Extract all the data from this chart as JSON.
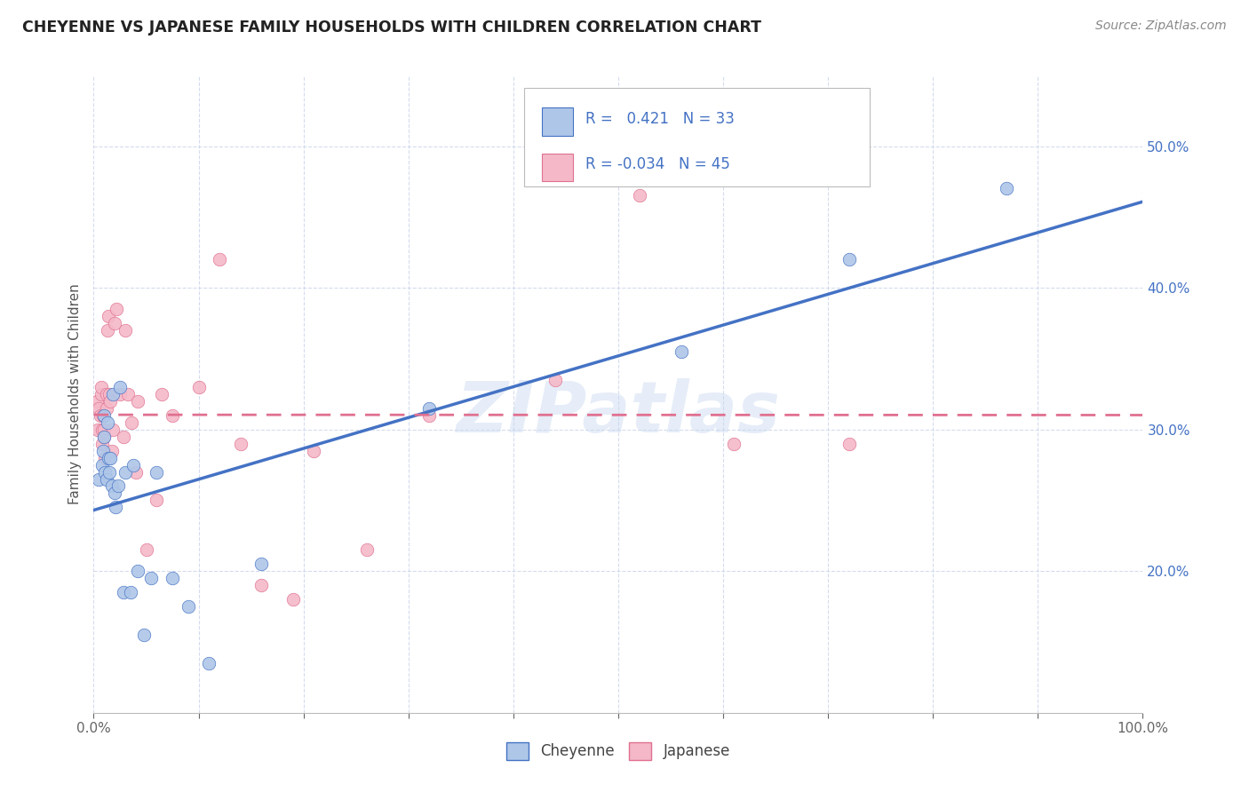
{
  "title": "CHEYENNE VS JAPANESE FAMILY HOUSEHOLDS WITH CHILDREN CORRELATION CHART",
  "source": "Source: ZipAtlas.com",
  "ylabel": "Family Households with Children",
  "watermark": "ZIPatlas",
  "cheyenne_color": "#aec6e8",
  "japanese_color": "#f4b8c8",
  "cheyenne_line_color": "#4472c4",
  "japanese_line_color": "#e07090",
  "background_color": "#ffffff",
  "grid_color": "#d0d8ec",
  "xlim": [
    0.0,
    1.0
  ],
  "ylim": [
    0.1,
    0.55
  ],
  "x_ticks_shown": [
    0.0,
    1.0
  ],
  "x_ticks_all": [
    0.0,
    0.1,
    0.2,
    0.3,
    0.4,
    0.5,
    0.6,
    0.7,
    0.8,
    0.9,
    1.0
  ],
  "y_ticks": [
    0.2,
    0.3,
    0.4,
    0.5
  ],
  "cheyenne_x": [
    0.005,
    0.008,
    0.009,
    0.01,
    0.01,
    0.011,
    0.012,
    0.013,
    0.014,
    0.015,
    0.016,
    0.017,
    0.018,
    0.02,
    0.021,
    0.023,
    0.025,
    0.028,
    0.03,
    0.035,
    0.038,
    0.042,
    0.048,
    0.055,
    0.06,
    0.075,
    0.09,
    0.11,
    0.16,
    0.32,
    0.56,
    0.72,
    0.87
  ],
  "cheyenne_y": [
    0.265,
    0.275,
    0.285,
    0.31,
    0.295,
    0.27,
    0.265,
    0.305,
    0.28,
    0.27,
    0.28,
    0.26,
    0.325,
    0.255,
    0.245,
    0.26,
    0.33,
    0.185,
    0.27,
    0.185,
    0.275,
    0.2,
    0.155,
    0.195,
    0.27,
    0.195,
    0.175,
    0.135,
    0.205,
    0.315,
    0.355,
    0.42,
    0.47
  ],
  "japanese_x": [
    0.003,
    0.004,
    0.005,
    0.006,
    0.007,
    0.007,
    0.008,
    0.008,
    0.009,
    0.01,
    0.01,
    0.011,
    0.012,
    0.012,
    0.013,
    0.014,
    0.015,
    0.016,
    0.017,
    0.018,
    0.02,
    0.022,
    0.025,
    0.028,
    0.03,
    0.033,
    0.036,
    0.04,
    0.042,
    0.05,
    0.06,
    0.065,
    0.075,
    0.1,
    0.12,
    0.14,
    0.16,
    0.19,
    0.21,
    0.26,
    0.32,
    0.44,
    0.52,
    0.61,
    0.72
  ],
  "japanese_y": [
    0.32,
    0.3,
    0.315,
    0.31,
    0.325,
    0.33,
    0.29,
    0.3,
    0.31,
    0.3,
    0.295,
    0.28,
    0.315,
    0.325,
    0.37,
    0.38,
    0.325,
    0.32,
    0.285,
    0.3,
    0.375,
    0.385,
    0.325,
    0.295,
    0.37,
    0.325,
    0.305,
    0.27,
    0.32,
    0.215,
    0.25,
    0.325,
    0.31,
    0.33,
    0.42,
    0.29,
    0.19,
    0.18,
    0.285,
    0.215,
    0.31,
    0.335,
    0.465,
    0.29,
    0.29
  ]
}
